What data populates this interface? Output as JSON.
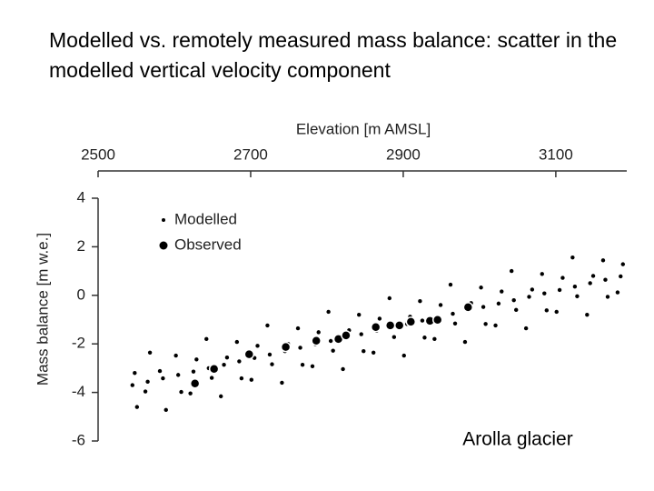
{
  "chart_data": {
    "type": "scatter",
    "title": "Modelled vs. remotely measured mass balance: scatter in the modelled vertical velocity component",
    "xlabel": "Elevation [m AMSL]",
    "ylabel": "Mass balance [m w.e.]",
    "annotation": "Arolla glacier",
    "xlim": [
      2500,
      3193
    ],
    "xticks": [
      2500,
      2700,
      2900,
      3100
    ],
    "ylim": [
      -6,
      4
    ],
    "yticks": [
      -6,
      -4,
      -2,
      0,
      2,
      4
    ],
    "legend": "upper left",
    "series": [
      {
        "name": "Modelled",
        "color": "#000000",
        "x": [
          2545,
          2548,
          2551,
          2565,
          2568,
          2562,
          2585,
          2581,
          2589,
          2605,
          2602,
          2609,
          2625,
          2629,
          2621,
          2645,
          2642,
          2649,
          2665,
          2669,
          2661,
          2685,
          2682,
          2688,
          2705,
          2709,
          2701,
          2725,
          2722,
          2728,
          2745,
          2749,
          2741,
          2765,
          2762,
          2768,
          2785,
          2789,
          2781,
          2805,
          2802,
          2808,
          2825,
          2829,
          2821,
          2845,
          2842,
          2848,
          2865,
          2869,
          2861,
          2885,
          2882,
          2888,
          2905,
          2909,
          2901,
          2925,
          2922,
          2928,
          2945,
          2949,
          2941,
          2965,
          2962,
          2968,
          2985,
          2989,
          2981,
          3005,
          3002,
          3008,
          3025,
          3029,
          3021,
          3045,
          3042,
          3048,
          3065,
          3069,
          3061,
          3085,
          3082,
          3088,
          3105,
          3109,
          3101,
          3125,
          3122,
          3128,
          3145,
          3149,
          3141,
          3165,
          3162,
          3168,
          3185,
          3188,
          3181
        ],
        "y": [
          -3.7,
          -3.2,
          -4.6,
          -3.56,
          -2.36,
          -3.96,
          -3.42,
          -3.12,
          -4.72,
          -3.28,
          -2.48,
          -3.98,
          -3.14,
          -2.64,
          -4.04,
          -3.0,
          -1.8,
          -3.4,
          -2.86,
          -2.56,
          -4.16,
          -2.72,
          -1.92,
          -3.42,
          -2.58,
          -2.08,
          -3.48,
          -2.44,
          -1.24,
          -2.84,
          -2.3,
          -2.0,
          -3.6,
          -2.16,
          -1.36,
          -2.86,
          -2.02,
          -1.52,
          -2.92,
          -1.88,
          -0.68,
          -2.28,
          -1.74,
          -1.44,
          -3.04,
          -1.6,
          -0.8,
          -2.3,
          -1.46,
          -0.96,
          -2.36,
          -1.32,
          -0.12,
          -1.72,
          -1.18,
          -0.88,
          -2.48,
          -1.04,
          -0.24,
          -1.74,
          -0.9,
          -0.4,
          -1.8,
          -0.76,
          0.44,
          -1.16,
          -0.62,
          -0.32,
          -1.92,
          -0.48,
          0.32,
          -1.18,
          -0.34,
          0.16,
          -1.24,
          -0.2,
          1.0,
          -0.6,
          -0.06,
          0.24,
          -1.36,
          0.08,
          0.88,
          -0.62,
          0.22,
          0.72,
          -0.68,
          0.36,
          1.56,
          -0.04,
          0.5,
          0.8,
          -0.8,
          0.64,
          1.44,
          -0.06,
          0.78,
          1.28,
          0.12
        ]
      },
      {
        "name": "Observed",
        "color": "#000000",
        "x": [
          2627,
          2652,
          2698,
          2746,
          2786,
          2815,
          2825,
          2864,
          2883,
          2895,
          2910,
          2935,
          2945,
          2985
        ],
        "y": [
          -3.63,
          -3.03,
          -2.43,
          -2.13,
          -1.87,
          -1.8,
          -1.65,
          -1.31,
          -1.24,
          -1.24,
          -1.09,
          -1.05,
          -1.01,
          -0.49
        ]
      }
    ]
  }
}
